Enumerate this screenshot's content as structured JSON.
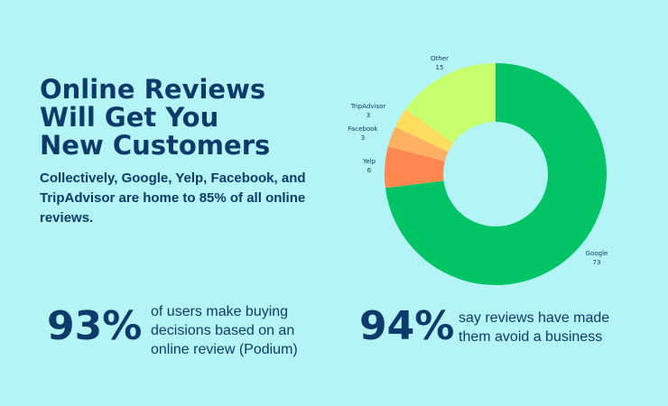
{
  "title_lines": [
    "Online Reviews",
    "Will Get You",
    "New Customers"
  ],
  "subtitle": "Collectively, Google, Yelp, Facebook, and TripAdvisor are home to 85% of all online reviews.",
  "stats": [
    {
      "value": "93%",
      "text": "of users make buying decisions based on an online review (Podium)"
    },
    {
      "value": "94%",
      "text": "say reviews have made them avoid a business"
    }
  ],
  "chart_data": {
    "type": "pie",
    "donut": true,
    "categories": [
      "Google",
      "Yelp",
      "Facebook",
      "TripAdvisor",
      "Other"
    ],
    "values": [
      73,
      6,
      3,
      3,
      15
    ],
    "colors": [
      "#02c365",
      "#fe884f",
      "#feb163",
      "#fedc5e",
      "#c8ff6e"
    ],
    "title": "",
    "legend": "none",
    "labels_shown": true
  }
}
